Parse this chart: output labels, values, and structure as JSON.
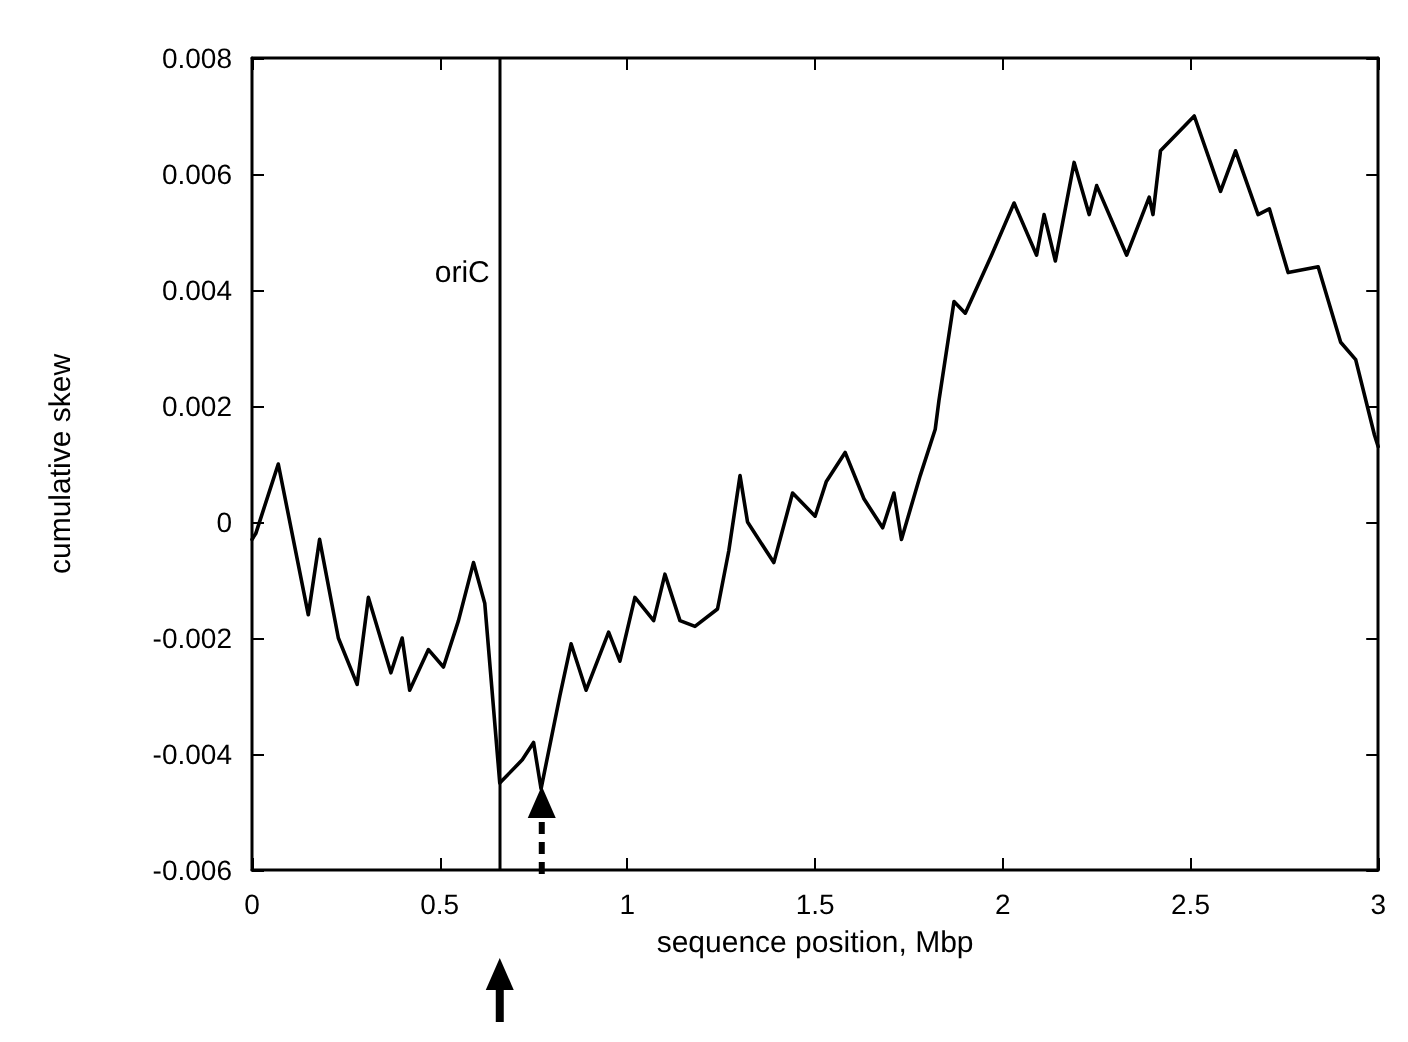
{
  "chart_data": {
    "type": "line",
    "xlabel": "sequence position, Mbp",
    "ylabel": "cumulative skew",
    "x": [
      0,
      0.01,
      0.07,
      0.15,
      0.18,
      0.23,
      0.28,
      0.31,
      0.37,
      0.4,
      0.42,
      0.47,
      0.51,
      0.55,
      0.59,
      0.62,
      0.66,
      0.72,
      0.75,
      0.77,
      0.82,
      0.85,
      0.89,
      0.95,
      0.98,
      1.02,
      1.07,
      1.1,
      1.14,
      1.18,
      1.24,
      1.27,
      1.3,
      1.32,
      1.39,
      1.44,
      1.5,
      1.53,
      1.58,
      1.63,
      1.68,
      1.71,
      1.73,
      1.78,
      1.82,
      1.83,
      1.87,
      1.9,
      1.97,
      2.03,
      2.09,
      2.11,
      2.14,
      2.19,
      2.23,
      2.25,
      2.33,
      2.39,
      2.4,
      2.42,
      2.51,
      2.58,
      2.62,
      2.68,
      2.71,
      2.76,
      2.84,
      2.9,
      2.94,
      2.99,
      3
    ],
    "series": [
      {
        "color": "#000000",
        "values": [
          -0.0003,
          -0.0002,
          0.001,
          -0.0016,
          -0.0003,
          -0.002,
          -0.0028,
          -0.0013,
          -0.0026,
          -0.002,
          -0.0029,
          -0.0022,
          -0.0025,
          -0.0017,
          -0.0007,
          -0.0014,
          -0.0045,
          -0.0041,
          -0.0038,
          -0.0046,
          -0.003,
          -0.0021,
          -0.0029,
          -0.0019,
          -0.0024,
          -0.0013,
          -0.0017,
          -0.0009,
          -0.0017,
          -0.0018,
          -0.0015,
          -0.0005,
          0.0008,
          0,
          -0.0007,
          0.0005,
          0.0001,
          0.0007,
          0.0012,
          0.0004,
          -0.0001,
          0.0005,
          -0.0003,
          0.0008,
          0.0016,
          0.0021,
          0.0038,
          0.0036,
          0.0046,
          0.0055,
          0.0046,
          0.0053,
          0.0045,
          0.0062,
          0.0053,
          0.0058,
          0.0046,
          0.0056,
          0.0053,
          0.0064,
          0.007,
          0.0057,
          0.0064,
          0.0053,
          0.0054,
          0.0043,
          0.0044,
          0.0031,
          0.0028,
          0.0015,
          0.0013
        ]
      }
    ],
    "xlim": [
      0,
      3
    ],
    "xticks": [
      0,
      0.5,
      1,
      1.5,
      2,
      2.5,
      3
    ],
    "ylim": [
      -0.006,
      0.008
    ],
    "yticks": [
      -0.006,
      -0.004,
      -0.002,
      0,
      0.002,
      0.004,
      0.006,
      0.008
    ],
    "ref_lines": [
      {
        "axis": "x",
        "value": 0.66,
        "label": "oriC",
        "color": "#000000"
      }
    ],
    "marker": "none",
    "line_style": "solid"
  }
}
